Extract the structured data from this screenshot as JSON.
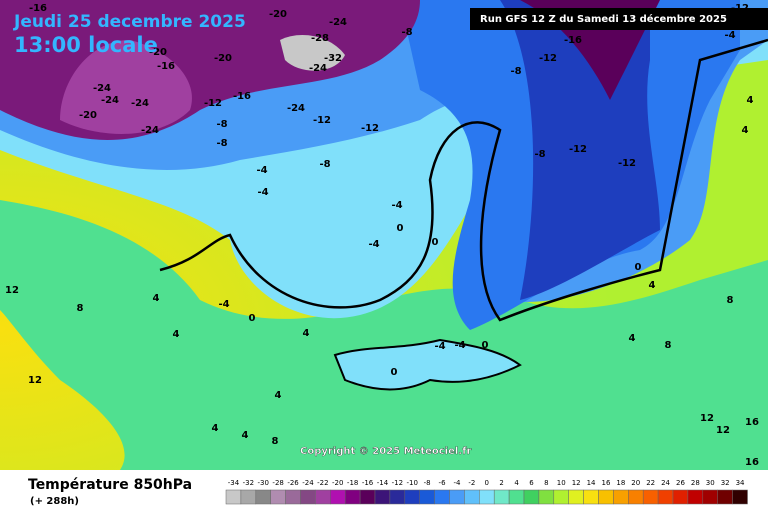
{
  "header": {
    "date": "Jeudi 25 decembre 2025",
    "time": "13:00 locale",
    "run": "Run GFS 12 Z du Samedi 13 décembre 2025"
  },
  "copyright": "Copyright © 2025 Meteociel.fr",
  "footer": {
    "title": "Température 850hPa",
    "lead": "(+ 288h)"
  },
  "contour_labels": [
    "-16",
    "-20",
    "-24",
    "-8",
    "-28",
    "-32",
    "-24",
    "-20",
    "-20",
    "-16",
    "-24",
    "-24",
    "-24",
    "-20",
    "-24",
    "-12",
    "-16",
    "-24",
    "-12",
    "-8",
    "-8",
    "-12",
    "-16",
    "-12",
    "-8",
    "-8",
    "-12",
    "-12",
    "-8",
    "-4",
    "-4",
    "-4",
    "-4",
    "-4",
    "0",
    "0",
    "0",
    "4",
    "4",
    "8",
    "12",
    "4",
    "4",
    "4",
    "4",
    "8",
    "0",
    "-4",
    "-4",
    "0",
    "4",
    "8",
    "4",
    "0",
    "12",
    "12",
    "16",
    "16",
    "-12",
    "-4",
    "4",
    "4",
    "8",
    "12"
  ],
  "scale": {
    "values": [
      -34,
      -32,
      -30,
      -28,
      -26,
      -24,
      -22,
      -20,
      -18,
      -16,
      -14,
      -12,
      -10,
      -8,
      -6,
      -4,
      -2,
      0,
      2,
      4,
      6,
      8,
      10,
      12,
      14,
      16,
      18,
      20,
      22,
      24,
      26,
      28,
      30,
      32,
      34
    ],
    "colors": [
      "#c8c8c8",
      "#a8a8a8",
      "#888888",
      "#b08cb0",
      "#9a6a9a",
      "#844884",
      "#a040a0",
      "#b010b0",
      "#800080",
      "#5a005a",
      "#3c1478",
      "#2a2a9a",
      "#1e3ebe",
      "#1a5ad8",
      "#2a78f0",
      "#4a9cf6",
      "#60c0fa",
      "#80e0fa",
      "#70e8c8",
      "#50e090",
      "#40d060",
      "#80e040",
      "#b0f030",
      "#e0f020",
      "#f8e010",
      "#f8c000",
      "#f8a000",
      "#f88000",
      "#f86000",
      "#f04000",
      "#e02000",
      "#c00000",
      "#a00000",
      "#700000",
      "#300000"
    ]
  }
}
